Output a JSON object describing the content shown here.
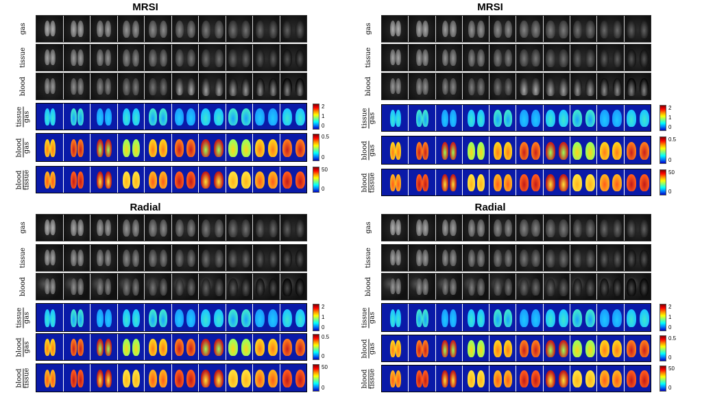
{
  "panels": [
    {
      "id": "tl",
      "title": "MRSI",
      "gray_rows": [
        "gas",
        "tissue",
        "blood"
      ],
      "color_rows": [
        {
          "top": "tissue",
          "bottom": "gas",
          "ticks": [
            "2",
            "1",
            "0"
          ]
        },
        {
          "top": "blood",
          "bottom": "gas",
          "ticks": [
            "0.5",
            "0"
          ]
        },
        {
          "top": "blood",
          "bottom": "tissue",
          "ticks": [
            "50",
            "0"
          ]
        }
      ]
    },
    {
      "id": "tr",
      "title": "MRSI",
      "gray_rows": [
        "gas",
        "tissue",
        "blood"
      ],
      "color_rows": [
        {
          "top": "tissue",
          "bottom": "gas",
          "ticks": [
            "2",
            "1",
            "0"
          ]
        },
        {
          "top": "blood",
          "bottom": "gas",
          "ticks": [
            "0.5",
            "0"
          ]
        },
        {
          "top": "blood",
          "bottom": "tissue",
          "ticks": [
            "50",
            "0"
          ]
        }
      ]
    },
    {
      "id": "bl",
      "title": "Radial",
      "gray_rows": [
        "gas",
        "tissue",
        "blood"
      ],
      "color_rows": [
        {
          "top": "tissue",
          "bottom": "gas",
          "ticks": [
            "2",
            "1",
            "0"
          ]
        },
        {
          "top": "blood",
          "bottom": "gas",
          "ticks": [
            "0.5",
            "0"
          ]
        },
        {
          "top": "blood",
          "bottom": "tissue",
          "ticks": [
            "50",
            "0"
          ]
        }
      ]
    },
    {
      "id": "br",
      "title": "Radial",
      "gray_rows": [
        "gas",
        "tissue",
        "blood"
      ],
      "color_rows": [
        {
          "top": "tissue",
          "bottom": "gas",
          "ticks": [
            "2",
            "1",
            "0"
          ]
        },
        {
          "top": "blood",
          "bottom": "gas",
          "ticks": [
            "0.5",
            "0"
          ]
        },
        {
          "top": "blood",
          "bottom": "tissue",
          "ticks": [
            "50",
            "0"
          ]
        }
      ]
    }
  ]
}
